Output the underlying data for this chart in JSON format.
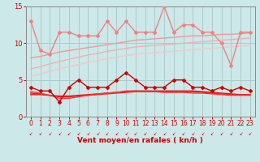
{
  "x": [
    0,
    1,
    2,
    3,
    4,
    5,
    6,
    7,
    8,
    9,
    10,
    11,
    12,
    13,
    14,
    15,
    16,
    17,
    18,
    19,
    20,
    21,
    22,
    23
  ],
  "series": [
    {
      "label": "line1_salmon_marker",
      "color": "#f08080",
      "lw": 1.0,
      "marker": "D",
      "markersize": 2.0,
      "y": [
        13,
        9,
        8.5,
        11.5,
        11.5,
        11,
        11,
        11,
        13,
        11.5,
        13,
        11.5,
        11.5,
        11.5,
        15,
        11.5,
        12.5,
        12.5,
        11.5,
        11.5,
        10,
        7,
        11.5,
        11.5
      ]
    },
    {
      "label": "line2_salmon_smooth1",
      "color": "#f09898",
      "lw": 1.0,
      "marker": null,
      "y": [
        8.0,
        8.2,
        8.5,
        8.8,
        9.0,
        9.2,
        9.4,
        9.6,
        9.8,
        10.0,
        10.2,
        10.4,
        10.5,
        10.6,
        10.7,
        10.8,
        10.9,
        11.0,
        11.0,
        11.1,
        11.2,
        11.2,
        11.3,
        11.4
      ]
    },
    {
      "label": "line3_salmon_smooth2",
      "color": "#f0b0b0",
      "lw": 1.0,
      "marker": null,
      "y": [
        6.5,
        6.8,
        7.2,
        7.5,
        7.8,
        8.1,
        8.4,
        8.6,
        8.9,
        9.1,
        9.3,
        9.5,
        9.6,
        9.7,
        9.8,
        9.9,
        10.0,
        10.1,
        10.2,
        10.3,
        10.4,
        10.5,
        10.6,
        10.7
      ]
    },
    {
      "label": "line4_salmon_smooth3",
      "color": "#f0c8c8",
      "lw": 1.0,
      "marker": null,
      "y": [
        5.5,
        5.8,
        6.2,
        6.5,
        6.8,
        7.1,
        7.4,
        7.6,
        7.9,
        8.1,
        8.3,
        8.5,
        8.6,
        8.7,
        8.8,
        8.9,
        9.0,
        9.1,
        9.2,
        9.3,
        9.4,
        9.5,
        9.6,
        9.7
      ]
    },
    {
      "label": "line5_red_marker",
      "color": "#cc0000",
      "lw": 1.0,
      "marker": "D",
      "markersize": 2.0,
      "y": [
        4.0,
        3.5,
        3.5,
        2.0,
        4.0,
        5.0,
        4.0,
        4.0,
        4.0,
        5.0,
        6.0,
        5.0,
        4.0,
        4.0,
        4.0,
        5.0,
        5.0,
        4.0,
        4.0,
        3.5,
        4.0,
        3.5,
        4.0,
        3.5
      ]
    },
    {
      "label": "line6_red_flat1",
      "color": "#dd1111",
      "lw": 1.0,
      "marker": null,
      "y": [
        3.0,
        3.0,
        2.9,
        2.8,
        2.8,
        2.9,
        3.0,
        3.1,
        3.2,
        3.3,
        3.4,
        3.5,
        3.5,
        3.5,
        3.5,
        3.5,
        3.5,
        3.5,
        3.4,
        3.3,
        3.2,
        3.1,
        3.0,
        3.0
      ]
    },
    {
      "label": "line7_red_flat2",
      "color": "#ee2222",
      "lw": 1.0,
      "marker": null,
      "y": [
        3.2,
        3.1,
        2.9,
        2.7,
        2.7,
        2.8,
        2.9,
        3.0,
        3.1,
        3.2,
        3.3,
        3.4,
        3.4,
        3.4,
        3.4,
        3.4,
        3.4,
        3.4,
        3.3,
        3.2,
        3.1,
        3.0,
        3.0,
        3.0
      ]
    },
    {
      "label": "line8_red_flat3",
      "color": "#ff3333",
      "lw": 1.0,
      "marker": null,
      "y": [
        3.4,
        3.2,
        2.9,
        2.5,
        2.5,
        2.7,
        2.9,
        3.1,
        3.2,
        3.3,
        3.5,
        3.5,
        3.4,
        3.4,
        3.3,
        3.3,
        3.3,
        3.2,
        3.2,
        3.1,
        3.0,
        2.9,
        2.9,
        2.9
      ]
    }
  ],
  "xlabel": "Vent moyen/en rafales ( kn/h )",
  "xlim": [
    -0.5,
    23.5
  ],
  "ylim": [
    0,
    15
  ],
  "yticks": [
    0,
    5,
    10,
    15
  ],
  "xticks": [
    0,
    1,
    2,
    3,
    4,
    5,
    6,
    7,
    8,
    9,
    10,
    11,
    12,
    13,
    14,
    15,
    16,
    17,
    18,
    19,
    20,
    21,
    22,
    23
  ],
  "bg_color": "#cce8e8",
  "grid_color": "#aacccc",
  "xlabel_color": "#cc0000",
  "tick_color": "#cc0000"
}
